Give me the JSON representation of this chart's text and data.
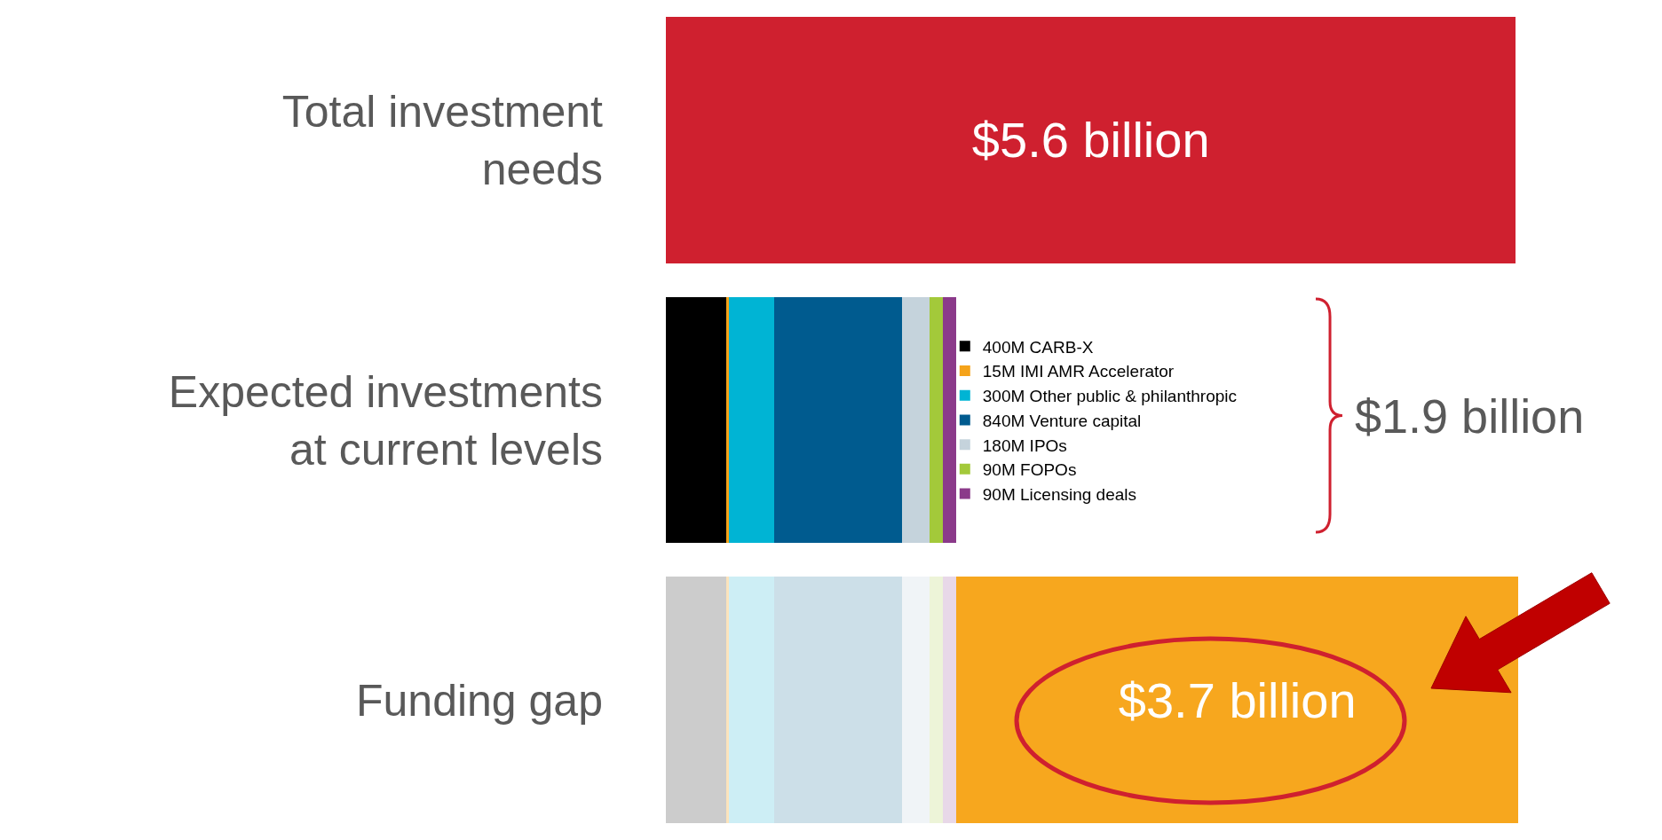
{
  "chart_data": {
    "type": "bar",
    "orientation": "horizontal",
    "stacked": true,
    "legend": "right",
    "categories": [
      "Total investment needs",
      "Expected investments at current levels",
      "Funding gap"
    ],
    "series": [
      {
        "color": "#cf202f",
        "values": [
          5.6,
          null,
          null
        ],
        "value_labels": [
          "$5.6 billion",
          null,
          null
        ]
      },
      {
        "name": "400M CARB-X",
        "color": "#000000",
        "values": [
          null,
          0.4,
          null
        ]
      },
      {
        "name": "15M IMI AMR Accelerator",
        "color": "#f5a31a",
        "values": [
          null,
          0.015,
          null
        ]
      },
      {
        "name": "300M Other public & philanthropic",
        "color": "#00b4d4",
        "values": [
          null,
          0.3,
          null
        ]
      },
      {
        "name": "840M Venture capital",
        "color": "#005b8f",
        "values": [
          null,
          0.84,
          null
        ]
      },
      {
        "name": "180M IPOs",
        "color": "#c5d3dc",
        "values": [
          null,
          0.18,
          null
        ]
      },
      {
        "name": "90M FOPOs",
        "color": "#a3c93a",
        "values": [
          null,
          0.09,
          null
        ]
      },
      {
        "name": "90M Licensing deals",
        "color": "#8b3a8a",
        "values": [
          null,
          0.09,
          null
        ]
      },
      {
        "color": "#cccccc",
        "values": [
          null,
          null,
          0.4
        ]
      },
      {
        "color": "#fbe3bc",
        "values": [
          null,
          null,
          0.015
        ]
      },
      {
        "color": "#cdeef5",
        "values": [
          null,
          null,
          0.3
        ]
      },
      {
        "color": "#ccdfe8",
        "values": [
          null,
          null,
          0.84
        ]
      },
      {
        "color": "#f0f4f7",
        "values": [
          null,
          null,
          0.18
        ]
      },
      {
        "color": "#edf4d8",
        "values": [
          null,
          null,
          0.09
        ]
      },
      {
        "color": "#e8d8e8",
        "values": [
          null,
          null,
          0.09
        ]
      },
      {
        "color": "#f7a71e",
        "values": [
          null,
          null,
          3.7
        ],
        "value_labels": [
          null,
          null,
          "$3.7 billion"
        ]
      }
    ],
    "annotations": [
      "$1.9 billion"
    ]
  }
}
